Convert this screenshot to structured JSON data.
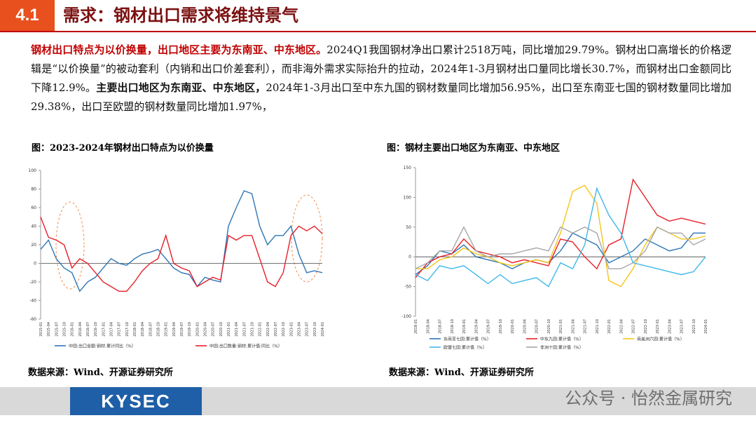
{
  "header": {
    "section": "4.1",
    "title": "需求：钢材出口需求将维持景气"
  },
  "summary": {
    "lead": "钢材出口特点为以价换量，出口地区主要为东南亚、中东地区。",
    "body1": "2024Q1我国钢材净出口累计2518万吨，同比增加29.79%。钢材出口高增长的价格逻辑是“以价换量”的被动套利（内销和出口价差套利），而非海外需求实际抬升的拉动，2024年1-3月钢材出口量同比增长30.7%，而钢材出口金额同比下降12.9%。",
    "bold2": "主要出口地区为东南亚、中东地区，",
    "body2": "2024年1-3月出口至中东九国的钢材数量同比增加56.95%，出口至东南亚七国的钢材数量同比增加29.38%，出口至欧盟的钢材数量同比增加1.97%，"
  },
  "figures": [
    {
      "caption": "图：2023-2024年钢材出口特点为以价换量",
      "source": "数据来源：Wind、开源证券研究所",
      "chart_data": {
        "type": "line",
        "categories": [
          "2015-01",
          "2015-04",
          "2015-07",
          "2015-10",
          "2016-01",
          "2016-04",
          "2016-07",
          "2016-10",
          "2017-01",
          "2017-04",
          "2017-07",
          "2017-10",
          "2018-01",
          "2018-04",
          "2018-07",
          "2018-10",
          "2019-01",
          "2019-04",
          "2019-07",
          "2019-10",
          "2020-01",
          "2020-04",
          "2020-07",
          "2020-10",
          "2021-01",
          "2021-04",
          "2021-07",
          "2021-10",
          "2022-01",
          "2022-04",
          "2022-07",
          "2022-10",
          "2023-01",
          "2023-04",
          "2023-07",
          "2023-10",
          "2024-01"
        ],
        "ylim": [
          -60,
          100
        ],
        "yticks": [
          -60,
          -40,
          -20,
          0,
          20,
          40,
          60,
          80,
          100
        ],
        "legend": "bottom",
        "legend_columns": 2,
        "series": [
          {
            "name": "中国:出口金额:钢材:累计同比（%）",
            "color": "#2e75b6",
            "values": [
              15,
              25,
              5,
              -5,
              -10,
              -30,
              -20,
              -15,
              -5,
              5,
              0,
              -2,
              5,
              10,
              12,
              15,
              5,
              -5,
              -10,
              -12,
              -25,
              -15,
              -18,
              -20,
              40,
              60,
              78,
              75,
              40,
              20,
              30,
              30,
              40,
              10,
              -10,
              -8,
              -10
            ]
          },
          {
            "name": "中国:出口数量:钢材:累计值:同比（%）",
            "color": "#e8202a",
            "values": [
              50,
              28,
              25,
              20,
              -5,
              5,
              0,
              -10,
              -20,
              -25,
              -30,
              -30,
              -20,
              -8,
              0,
              5,
              30,
              0,
              -5,
              -8,
              -25,
              -20,
              -15,
              -18,
              30,
              25,
              30,
              30,
              5,
              -20,
              -25,
              -10,
              30,
              40,
              35,
              40,
              32
            ]
          }
        ]
      }
    },
    {
      "caption": "图：钢材主要出口地区为东南亚、中东地区",
      "source": "数据来源：Wind、开源证券研究所",
      "chart_data": {
        "type": "line",
        "categories": [
          "2018-01",
          "2018-04",
          "2018-07",
          "2018-10",
          "2019-01",
          "2019-04",
          "2019-07",
          "2019-10",
          "2020-01",
          "2020-04",
          "2020-07",
          "2020-10",
          "2021-01",
          "2021-04",
          "2021-07",
          "2021-10",
          "2022-01",
          "2022-04",
          "2022-07",
          "2022-10",
          "2023-01",
          "2023-04",
          "2023-07",
          "2023-10",
          "2024-01"
        ],
        "ylim": [
          -100,
          150
        ],
        "yticks": [
          -100,
          -50,
          0,
          50,
          100,
          150
        ],
        "legend": "bottom",
        "legend_columns": 3,
        "series": [
          {
            "name": "东南亚七国:累计值（%）",
            "color": "#2e75b6",
            "values": [
              -30,
              -15,
              10,
              5,
              20,
              0,
              -5,
              -10,
              -20,
              -10,
              -5,
              -10,
              10,
              40,
              30,
              20,
              -10,
              0,
              10,
              30,
              20,
              10,
              15,
              40,
              40
            ]
          },
          {
            "name": "中东九国:累计值（%）",
            "color": "#e8202a",
            "values": [
              -35,
              -10,
              0,
              5,
              30,
              10,
              5,
              0,
              -10,
              -5,
              -10,
              -15,
              30,
              25,
              0,
              -20,
              20,
              30,
              130,
              100,
              70,
              60,
              65,
              60,
              55
            ]
          },
          {
            "name": "南美洲六国:累计值（%）",
            "color": "#f5c518",
            "values": [
              -20,
              -20,
              -5,
              0,
              15,
              5,
              0,
              -10,
              -15,
              -10,
              -5,
              -10,
              40,
              110,
              120,
              90,
              -40,
              -50,
              -20,
              20,
              50,
              40,
              30,
              30,
              35
            ]
          },
          {
            "name": "欧盟七国:累计值（%）",
            "color": "#3fb8e8",
            "values": [
              -30,
              -40,
              -15,
              -20,
              -15,
              -30,
              -45,
              -30,
              -45,
              -40,
              -35,
              -50,
              -10,
              -20,
              20,
              115,
              70,
              40,
              -10,
              -15,
              -20,
              -25,
              -30,
              -25,
              0
            ]
          },
          {
            "name": "非洲十国:累计值（%）",
            "color": "#a6a6a6",
            "values": [
              -20,
              -10,
              10,
              10,
              50,
              10,
              0,
              5,
              5,
              10,
              15,
              10,
              50,
              40,
              50,
              40,
              -20,
              -20,
              -10,
              10,
              50,
              40,
              40,
              20,
              30
            ]
          }
        ]
      }
    }
  ],
  "footer": {
    "logo": "KYSEC",
    "watermark": "公众号 · 怡然金属研究"
  }
}
